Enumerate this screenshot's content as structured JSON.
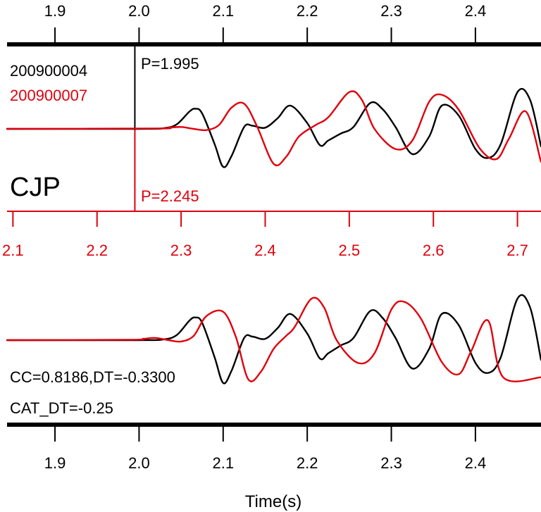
{
  "colors": {
    "black": "#000000",
    "red": "#e0000d",
    "background": "#ffffff"
  },
  "top_panel": {
    "event_a_id": "200900004",
    "event_b_id": "200900007",
    "station": "CJP",
    "pick_a_label": "P=1.995",
    "pick_b_label": "P=2.245"
  },
  "bottom_panel": {
    "cc_label": "CC=0.8186,DT=-0.3300",
    "cat_dt_label": "CAT_DT=-0.25",
    "xlabel": "Time(s)"
  },
  "chart_data": {
    "type": "line",
    "title": "",
    "xlabel": "Time(s)",
    "ylabel": "",
    "grid": false,
    "legend": "top-left",
    "axes": {
      "black_time": {
        "range": [
          1.843,
          2.478
        ],
        "ticks": [
          1.9,
          2.0,
          2.1,
          2.2,
          2.3,
          2.4
        ],
        "tick_labels": [
          "1.9",
          "2.0",
          "2.1",
          "2.2",
          "2.3",
          "2.4"
        ]
      },
      "red_time": {
        "range": [
          2.093,
          2.728
        ],
        "ticks": [
          2.1,
          2.2,
          2.3,
          2.4,
          2.5,
          2.6,
          2.7
        ],
        "tick_labels": [
          "2.1",
          "2.2",
          "2.3",
          "2.4",
          "2.5",
          "2.6",
          "2.7"
        ]
      }
    },
    "picks": {
      "black": 1.995,
      "red": 2.245
    },
    "series": [
      {
        "name": "200900004",
        "color": "#000000",
        "panel": "top",
        "x": [
          1.843,
          2.0,
          2.03,
          2.045,
          2.06,
          2.067,
          2.075,
          2.09,
          2.1,
          2.11,
          2.125,
          2.135,
          2.15,
          2.165,
          2.18,
          2.2,
          2.215,
          2.225,
          2.24,
          2.255,
          2.275,
          2.29,
          2.305,
          2.325,
          2.345,
          2.36,
          2.38,
          2.4,
          2.415,
          2.43,
          2.45,
          2.465,
          2.478
        ],
        "y": [
          0.0,
          0.0,
          0.02,
          0.12,
          0.45,
          0.52,
          0.4,
          -0.4,
          -0.98,
          -0.7,
          0.05,
          0.08,
          0.03,
          0.28,
          0.6,
          0.15,
          -0.42,
          -0.3,
          -0.12,
          0.05,
          0.67,
          0.5,
          0.05,
          -0.65,
          -0.2,
          0.6,
          0.35,
          -0.52,
          -0.75,
          -0.4,
          0.95,
          0.75,
          -0.45
        ],
        "amplitude": [
          -1,
          1
        ]
      },
      {
        "name": "200900007",
        "color": "#e0000d",
        "panel": "top",
        "x": [
          2.093,
          2.27,
          2.285,
          2.3,
          2.315,
          2.33,
          2.345,
          2.36,
          2.375,
          2.39,
          2.41,
          2.425,
          2.44,
          2.46,
          2.475,
          2.5,
          2.515,
          2.53,
          2.555,
          2.575,
          2.595,
          2.61,
          2.63,
          2.655,
          2.675,
          2.69,
          2.71,
          2.728
        ],
        "y": [
          0.0,
          0.01,
          0.03,
          0.05,
          0.0,
          -0.03,
          0.1,
          0.55,
          0.65,
          0.08,
          -0.9,
          -0.72,
          -0.2,
          0.1,
          0.3,
          0.95,
          0.75,
          0.0,
          -0.52,
          -0.3,
          0.7,
          0.88,
          0.5,
          -0.5,
          -0.78,
          -0.25,
          0.45,
          -0.85
        ],
        "amplitude": [
          -1,
          1
        ]
      },
      {
        "name": "200900004",
        "color": "#000000",
        "panel": "bottom",
        "x": [
          1.843,
          2.0,
          2.03,
          2.045,
          2.06,
          2.067,
          2.075,
          2.09,
          2.1,
          2.11,
          2.125,
          2.135,
          2.15,
          2.165,
          2.18,
          2.2,
          2.215,
          2.225,
          2.24,
          2.255,
          2.275,
          2.29,
          2.305,
          2.325,
          2.345,
          2.36,
          2.38,
          2.4,
          2.415,
          2.43,
          2.45,
          2.465,
          2.478
        ],
        "y": [
          0.0,
          0.0,
          0.02,
          0.12,
          0.45,
          0.52,
          0.4,
          -0.4,
          -0.98,
          -0.7,
          0.05,
          0.08,
          0.03,
          0.28,
          0.6,
          0.15,
          -0.42,
          -0.3,
          -0.12,
          0.05,
          0.67,
          0.5,
          0.05,
          -0.65,
          -0.2,
          0.6,
          0.35,
          -0.52,
          -0.75,
          -0.4,
          0.95,
          0.75,
          -0.45
        ],
        "amplitude": [
          -1,
          1
        ]
      },
      {
        "name": "200900007",
        "color": "#e0000d",
        "panel": "bottom",
        "x": [
          1.843,
          1.99,
          2.005,
          2.02,
          2.035,
          2.05,
          2.065,
          2.08,
          2.1,
          2.115,
          2.13,
          2.145,
          2.16,
          2.175,
          2.185,
          2.205,
          2.22,
          2.235,
          2.26,
          2.28,
          2.3,
          2.315,
          2.335,
          2.36,
          2.38,
          2.395,
          2.415,
          2.433,
          2.478
        ],
        "y": [
          0.0,
          0.01,
          0.03,
          0.05,
          0.0,
          -0.03,
          0.1,
          0.55,
          0.65,
          0.08,
          -0.9,
          -0.72,
          -0.2,
          0.1,
          0.3,
          0.95,
          0.75,
          0.0,
          -0.52,
          -0.3,
          0.7,
          0.88,
          0.5,
          -0.5,
          -0.78,
          -0.25,
          0.45,
          -0.85,
          -0.85
        ],
        "amplitude": [
          -1,
          1
        ]
      }
    ]
  }
}
